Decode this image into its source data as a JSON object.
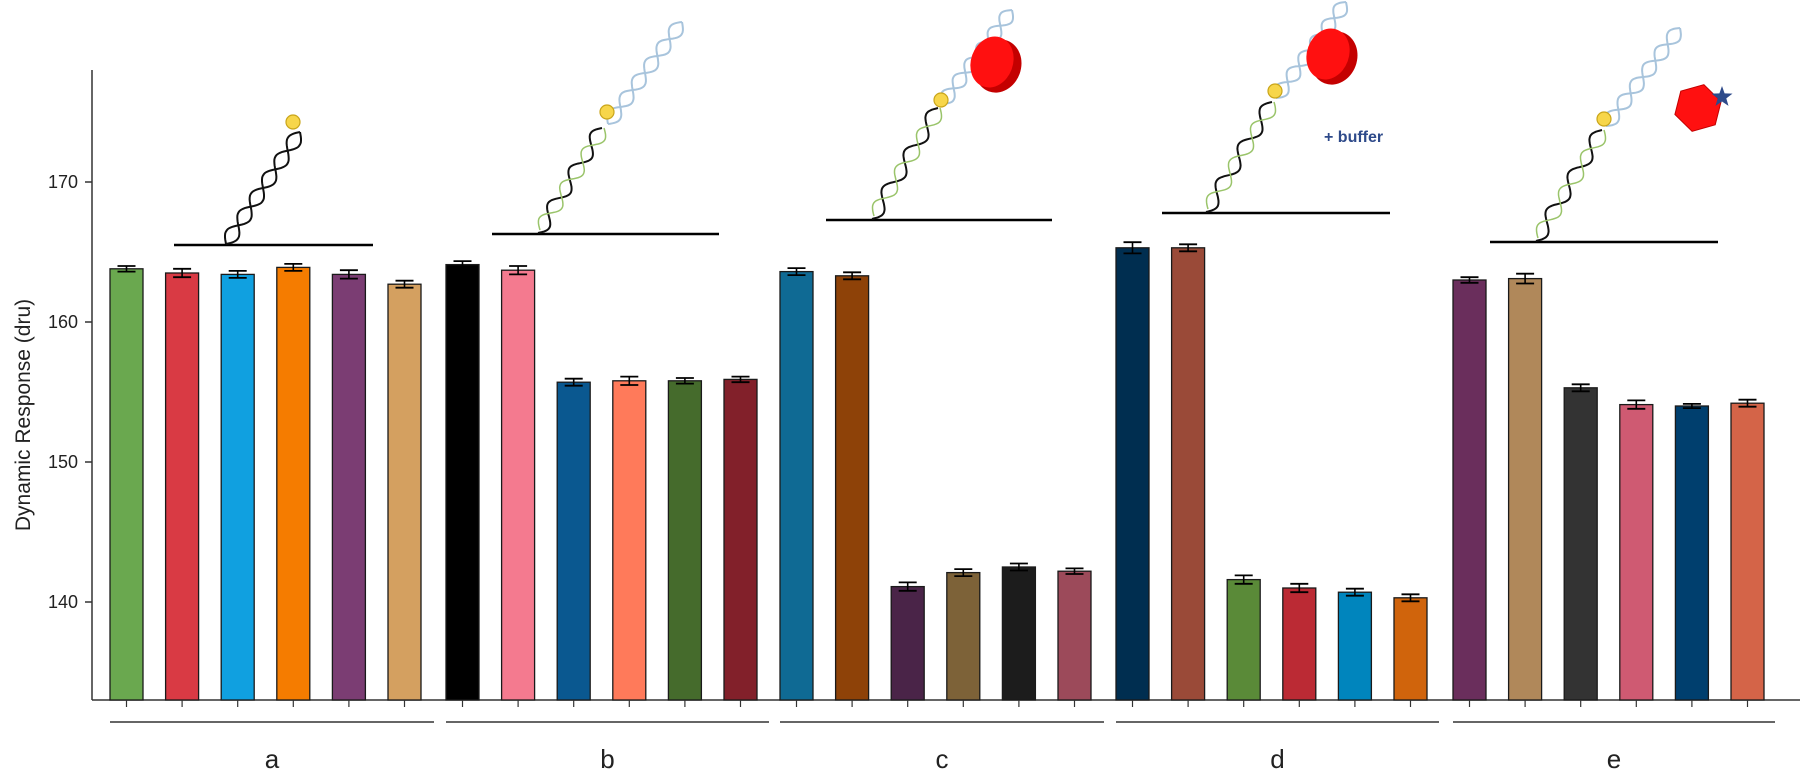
{
  "colors": {
    "axis": "#333333",
    "errorbar": "#000000",
    "bar_outline": "#1a1a1a"
  },
  "chart_data": {
    "type": "bar",
    "title": "",
    "xlabel": "",
    "ylabel": "Dynamic Response (dru)",
    "ylim": [
      133,
      178
    ],
    "yticks": [
      140,
      150,
      160,
      170
    ],
    "grid": false,
    "groups": [
      {
        "label": "a",
        "values": [
          163.8,
          163.5,
          163.4,
          163.9,
          163.4,
          162.7
        ],
        "errors": [
          0.2,
          0.3,
          0.25,
          0.25,
          0.3,
          0.25
        ],
        "colors": [
          "#6aa84f",
          "#d93a44",
          "#10a0e0",
          "#f57c00",
          "#7b3d73",
          "#d4a060"
        ]
      },
      {
        "label": "b",
        "values": [
          164.1,
          163.7,
          155.7,
          155.8,
          155.8,
          155.9
        ],
        "errors": [
          0.25,
          0.3,
          0.25,
          0.3,
          0.2,
          0.2
        ],
        "colors": [
          "#000000",
          "#f47a8f",
          "#0a5890",
          "#ff7a5a",
          "#456b2c",
          "#82202a"
        ]
      },
      {
        "label": "c",
        "values": [
          163.6,
          163.3,
          141.1,
          142.1,
          142.5,
          142.2
        ],
        "errors": [
          0.25,
          0.25,
          0.3,
          0.25,
          0.25,
          0.2
        ],
        "colors": [
          "#0f6a94",
          "#8e4208",
          "#4a2448",
          "#7d6238",
          "#1c1c1c",
          "#9c4a5a"
        ]
      },
      {
        "label": "d",
        "values": [
          165.3,
          165.3,
          141.6,
          141.0,
          140.7,
          140.3
        ],
        "errors": [
          0.4,
          0.25,
          0.3,
          0.3,
          0.25,
          0.25
        ],
        "colors": [
          "#002e50",
          "#9a4a38",
          "#5a8a38",
          "#bb2a34",
          "#0085bd",
          "#d0640c"
        ]
      },
      {
        "label": "e",
        "values": [
          163.0,
          163.1,
          155.3,
          154.1,
          154.0,
          154.2
        ],
        "errors": [
          0.2,
          0.35,
          0.25,
          0.3,
          0.15,
          0.25
        ],
        "colors": [
          "#6a2e5c",
          "#b0885a",
          "#333333",
          "#cf5a72",
          "#003f6e",
          "#d46448"
        ]
      }
    ],
    "annotations": [
      {
        "group": "d",
        "text": "+ buffer"
      }
    ]
  }
}
